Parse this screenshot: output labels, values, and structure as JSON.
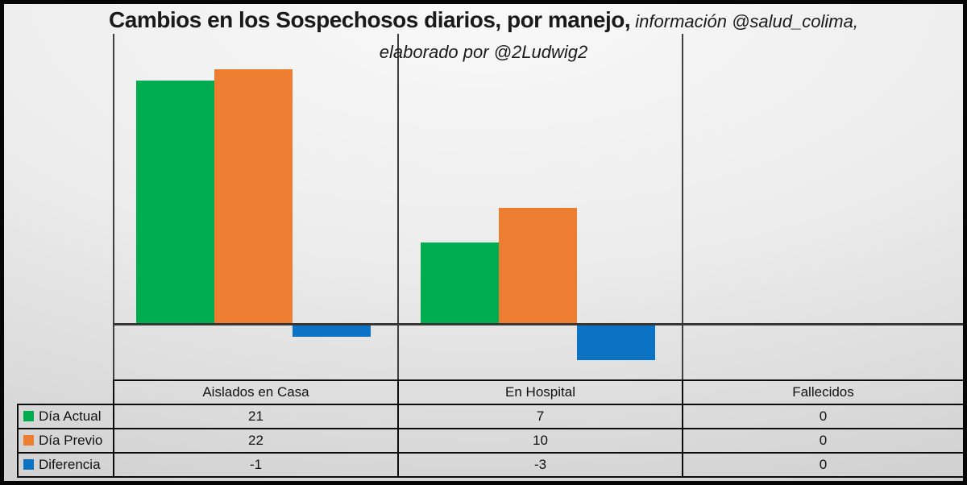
{
  "title": {
    "bold": "Cambios en los Sospechosos diarios, por manejo,",
    "italic": " información @salud_colima,",
    "line2": "elaborado por @2Ludwig2"
  },
  "colors": {
    "dia_actual": "#00AC50",
    "dia_previo": "#ED7D31",
    "diferencia": "#0B72C4",
    "axis_line": "#3F3F3F",
    "table_border": "#0D0D0D"
  },
  "chart_data": {
    "type": "bar",
    "title": "Cambios en los Sospechosos diarios, por manejo, información @salud_colima, elaborado por @2Ludwig2",
    "categories": [
      "Aislados en Casa",
      "En Hospital",
      "Fallecidos"
    ],
    "series": [
      {
        "name": "Día Actual",
        "color_key": "dia_actual",
        "values": [
          21,
          7,
          0
        ]
      },
      {
        "name": "Día Previo",
        "color_key": "dia_previo",
        "values": [
          22,
          10,
          0
        ]
      },
      {
        "name": "Diferencia",
        "color_key": "diferencia",
        "values": [
          -1,
          -3,
          0
        ]
      }
    ],
    "ylim": [
      -5,
      25
    ],
    "xlabel": "",
    "ylabel": "",
    "grid": "category-separator-lines",
    "legend_position": "data-table-left",
    "data_table_shown": true
  }
}
